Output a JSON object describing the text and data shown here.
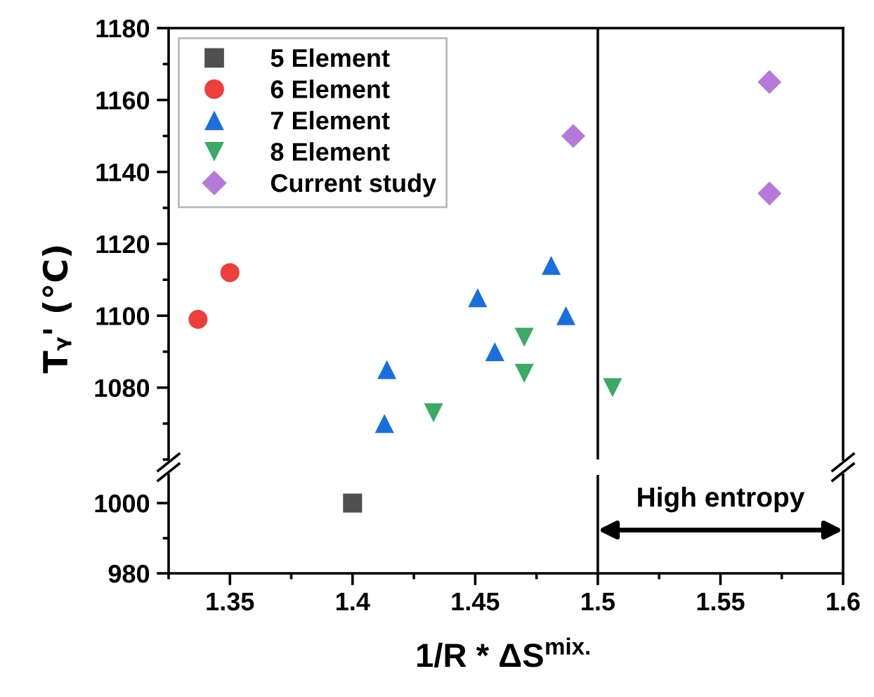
{
  "chart_data": [
    {
      "type": "scatter",
      "ylabel": "Tᵧ' (°C)",
      "xlim": [
        1.325,
        1.6
      ],
      "ylim": [
        1060,
        1180
      ],
      "yticks": [
        1080,
        1100,
        1120,
        1140,
        1160,
        1180
      ],
      "tick_labels": "y",
      "legend": "top left",
      "grid": false,
      "ref_lines": [
        {
          "axis": "x",
          "value": 1.5,
          "color": "#000000"
        }
      ],
      "series": [
        {
          "name": "6 Element",
          "color": "#ee3e3e",
          "marker": "circle",
          "x": [
            1.337,
            1.35
          ],
          "values": [
            1099,
            1112
          ]
        },
        {
          "name": "7 Element",
          "color": "#1a6fe0",
          "marker": "triangle",
          "x": [
            1.414,
            1.413,
            1.451,
            1.458,
            1.481,
            1.487
          ],
          "values": [
            1085,
            1070,
            1105,
            1090,
            1114,
            1100
          ]
        },
        {
          "name": "8 Element",
          "color": "#3aaa64",
          "marker": "triangle_down",
          "x": [
            1.433,
            1.47,
            1.47,
            1.506
          ],
          "values": [
            1073,
            1094,
            1084,
            1080
          ]
        },
        {
          "name": "Current study",
          "color": "#b57ad9",
          "marker": "diamond",
          "x": [
            1.49,
            1.57,
            1.57
          ],
          "values": [
            1150,
            1165,
            1134
          ]
        }
      ]
    },
    {
      "type": "scatter",
      "xlabel": "1/R * ΔS$^{mix.}$",
      "xlim": [
        1.325,
        1.6
      ],
      "xticks": [
        1.35,
        1.4,
        1.45,
        1.5,
        1.55,
        1.6
      ],
      "ylim": [
        980,
        1008
      ],
      "yticks": [
        980,
        1000
      ],
      "grid": false,
      "ref_lines": [
        {
          "axis": "x",
          "value": 1.5,
          "color": "#000000"
        }
      ],
      "annotations": [
        "High entropy"
      ],
      "series": [
        {
          "name": "5 Element",
          "color": "#505050",
          "marker": "square",
          "x": [
            1.4
          ],
          "values": [
            1000
          ]
        }
      ]
    }
  ]
}
